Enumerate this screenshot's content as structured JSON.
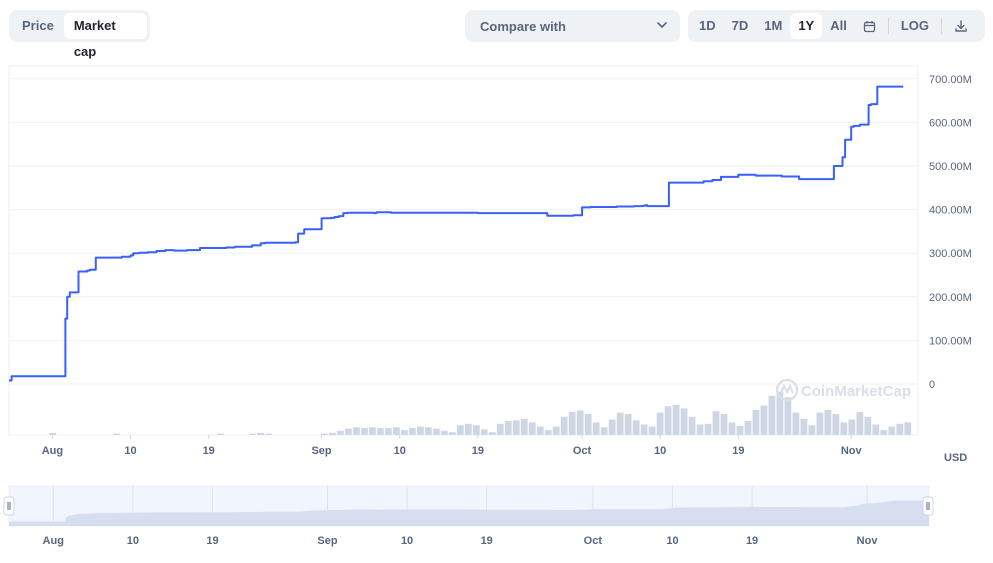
{
  "toggle": {
    "price": "Price",
    "market_cap": "Market cap"
  },
  "compare": {
    "label": "Compare with"
  },
  "ranges": {
    "d1": "1D",
    "d7": "7D",
    "m1": "1M",
    "y1": "1Y",
    "all": "All",
    "log": "LOG"
  },
  "currency": "USD",
  "watermark": "CoinMarketCap",
  "colors": {
    "line": "#3861fb",
    "volume": "#cfd6e4",
    "grid": "#eff2f5",
    "navigator_fill": "#e8eefc"
  },
  "chart_data": {
    "type": "line",
    "title": "",
    "xlabel": "",
    "ylabel": "",
    "ylim": [
      -100,
      700
    ],
    "yticks": [
      0,
      100,
      200,
      300,
      400,
      500,
      600,
      700
    ],
    "ytick_labels": [
      "0",
      "100.00M",
      "200.00M",
      "300.00M",
      "400.00M",
      "500.00M",
      "600.00M",
      "700.00M"
    ],
    "x_range_days": [
      0,
      104
    ],
    "xticks": [
      {
        "day": 5,
        "label": "Aug"
      },
      {
        "day": 14,
        "label": "10"
      },
      {
        "day": 23,
        "label": "19"
      },
      {
        "day": 36,
        "label": "Sep"
      },
      {
        "day": 45,
        "label": "10"
      },
      {
        "day": 54,
        "label": "19"
      },
      {
        "day": 66,
        "label": "Oct"
      },
      {
        "day": 75,
        "label": "10"
      },
      {
        "day": 84,
        "label": "19"
      },
      {
        "day": 97,
        "label": "Nov"
      }
    ],
    "series": [
      {
        "name": "Market cap",
        "unit": "USD (M)",
        "x": [
          0,
          0.3,
          3.3,
          6.3,
          6.5,
          6.7,
          7,
          8,
          9,
          9.3,
          10,
          12,
          13,
          14,
          14.3,
          15,
          16,
          17,
          18,
          19,
          20,
          20.5,
          22,
          25,
          26,
          28,
          29,
          29.5,
          33,
          33.3,
          34,
          36,
          37,
          37.5,
          38,
          38.5,
          39,
          41,
          42,
          42.3,
          44,
          46,
          48,
          50,
          52,
          54,
          56,
          58,
          60,
          60.5,
          62,
          64,
          65,
          66,
          67,
          70,
          72,
          73,
          73.3,
          73.5,
          76,
          80,
          81,
          82,
          84,
          86,
          89,
          91,
          92,
          94,
          94.5,
          95,
          96,
          96.3,
          97,
          97.3,
          98,
          99,
          99.3,
          100,
          102,
          103
        ],
        "values": [
          8,
          18,
          18,
          18,
          150,
          200,
          210,
          258,
          260,
          262,
          290,
          290,
          292,
          295,
          300,
          301,
          302,
          305,
          307,
          306,
          306,
          307,
          312,
          313,
          315,
          318,
          323,
          324,
          325,
          345,
          355,
          380,
          381,
          383,
          385,
          392,
          393,
          393,
          392,
          394,
          393,
          393,
          393,
          393,
          393,
          392,
          392,
          392,
          392,
          392,
          386,
          386,
          387,
          405,
          406,
          407,
          408,
          409,
          410,
          408,
          462,
          465,
          468,
          475,
          480,
          478,
          476,
          470,
          470,
          470,
          470,
          500,
          520,
          560,
          590,
          592,
          595,
          640,
          642,
          682,
          682,
          682
        ]
      },
      {
        "name": "Volume",
        "note": "relative volume histogram (no axis)",
        "values": [
          0,
          0,
          0,
          0,
          0,
          0.3,
          0,
          0,
          0,
          0,
          0,
          0,
          0,
          0.2,
          0,
          0,
          0,
          0,
          0,
          0,
          0,
          0,
          0,
          0,
          0,
          0,
          0.2,
          0,
          0,
          0,
          0.2,
          0.3,
          0.2,
          0,
          0,
          0,
          0,
          0,
          0,
          0.2,
          0.3,
          0.6,
          0.9,
          1.1,
          1.0,
          1.1,
          1.0,
          1.0,
          1.1,
          0.7,
          1.0,
          1.2,
          1.1,
          0.9,
          0.6,
          0.4,
          1.4,
          1.6,
          1.4,
          0.8,
          0.4,
          1.6,
          2.0,
          2.1,
          2.3,
          1.8,
          1.2,
          0.7,
          1.2,
          2.6,
          3.3,
          3.5,
          3.0,
          1.8,
          1.1,
          2.2,
          3.2,
          3.0,
          2.1,
          1.5,
          1.2,
          3.2,
          4.1,
          4.3,
          3.8,
          2.6,
          1.5,
          1.6,
          3.4,
          3.0,
          1.8,
          1.3,
          2.0,
          3.6,
          4.2,
          5.6,
          6.2,
          5.4,
          3.2,
          2.3,
          1.4,
          3.2,
          3.6,
          3.0,
          1.8,
          2.2,
          3.3,
          2.6,
          1.5,
          0.7,
          1.2,
          1.6,
          1.8
        ]
      }
    ],
    "navigator": {
      "xticks": [
        {
          "day": 5,
          "label": "Aug"
        },
        {
          "day": 14,
          "label": "10"
        },
        {
          "day": 23,
          "label": "19"
        },
        {
          "day": 36,
          "label": "Sep"
        },
        {
          "day": 45,
          "label": "10"
        },
        {
          "day": 54,
          "label": "19"
        },
        {
          "day": 66,
          "label": "Oct"
        },
        {
          "day": 75,
          "label": "10"
        },
        {
          "day": 84,
          "label": "19"
        },
        {
          "day": 97,
          "label": "Nov"
        }
      ]
    }
  }
}
